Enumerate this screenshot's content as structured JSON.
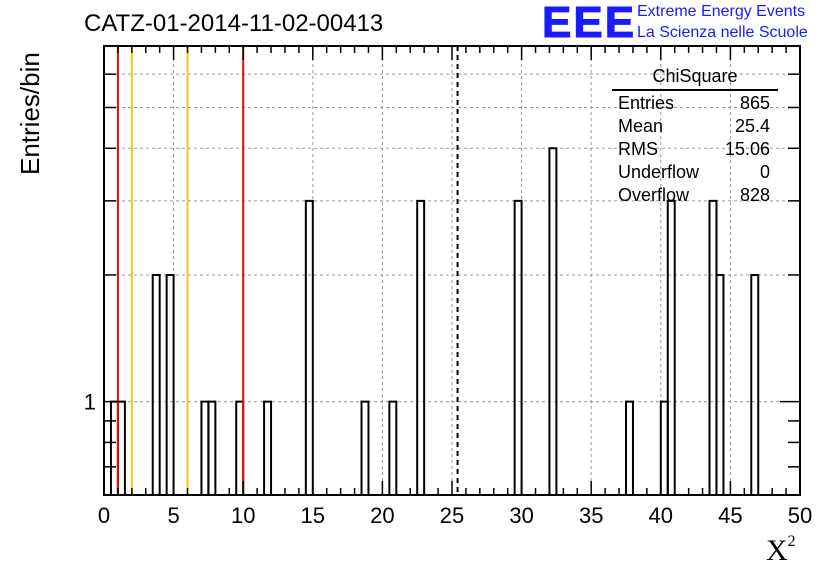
{
  "title": "CATZ-01-2014-11-02-00413",
  "logo": {
    "mark": "EEE",
    "line1": "Extreme Energy Events",
    "line2": "La Scienza nelle Scuole"
  },
  "stats": {
    "title": "ChiSquare",
    "rows": [
      {
        "label": "Entries",
        "value": "865"
      },
      {
        "label": "Mean",
        "value": "25.4"
      },
      {
        "label": "RMS",
        "value": "15.06"
      },
      {
        "label": "Underflow",
        "value": "0"
      },
      {
        "label": "Overflow",
        "value": "828"
      }
    ]
  },
  "colors": {
    "red_line": "#dd1111",
    "yellow_line": "#f5c518",
    "grid": "#999999"
  },
  "chart_data": {
    "type": "histogram",
    "title": "CATZ-01-2014-11-02-00413",
    "xlabel": "X",
    "xlabel_superscript": "2",
    "ylabel": "Entries/bin",
    "xlim": [
      0,
      50
    ],
    "ylim": [
      0.6,
      7
    ],
    "y_scale": "log",
    "x_ticks": [
      "0",
      "5",
      "10",
      "15",
      "20",
      "25",
      "30",
      "35",
      "40",
      "45",
      "50"
    ],
    "y_tick_labels": [
      {
        "value": 1,
        "label": "1"
      }
    ],
    "grid": true,
    "bin_width": 0.5,
    "bins": [
      {
        "x0": 0.5,
        "count": 1
      },
      {
        "x0": 1.0,
        "count": 1
      },
      {
        "x0": 3.5,
        "count": 2
      },
      {
        "x0": 4.5,
        "count": 2
      },
      {
        "x0": 7.0,
        "count": 1
      },
      {
        "x0": 7.5,
        "count": 1
      },
      {
        "x0": 9.5,
        "count": 1
      },
      {
        "x0": 11.5,
        "count": 1
      },
      {
        "x0": 14.5,
        "count": 3
      },
      {
        "x0": 18.5,
        "count": 1
      },
      {
        "x0": 20.5,
        "count": 1
      },
      {
        "x0": 22.5,
        "count": 3
      },
      {
        "x0": 29.5,
        "count": 3
      },
      {
        "x0": 32.0,
        "count": 4
      },
      {
        "x0": 37.5,
        "count": 1
      },
      {
        "x0": 40.0,
        "count": 1
      },
      {
        "x0": 40.5,
        "count": 3
      },
      {
        "x0": 43.5,
        "count": 3
      },
      {
        "x0": 44.0,
        "count": 2
      },
      {
        "x0": 46.5,
        "count": 2
      }
    ],
    "vertical_lines": [
      {
        "x": 1,
        "color": "red",
        "style": "solid"
      },
      {
        "x": 2,
        "color": "yellow",
        "style": "solid"
      },
      {
        "x": 6,
        "color": "yellow",
        "style": "solid"
      },
      {
        "x": 10,
        "color": "red",
        "style": "solid"
      },
      {
        "x": 25.4,
        "color": "black",
        "style": "dashed"
      }
    ],
    "legend_placement": "top-right"
  }
}
